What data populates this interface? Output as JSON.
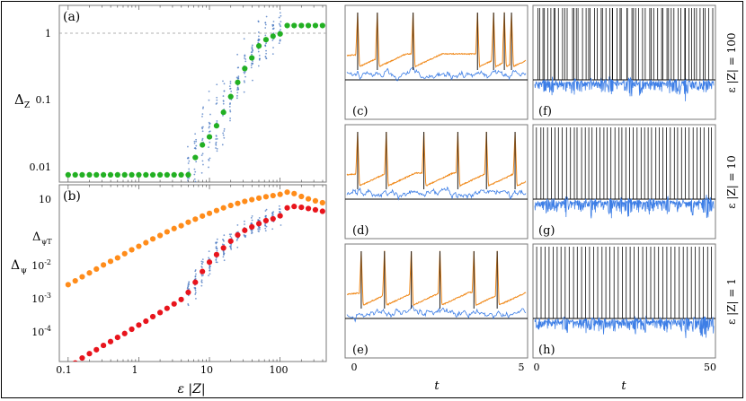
{
  "figure": {
    "panel_a": {
      "tag": "(a)",
      "ylabel_main": "Δ",
      "ylabel_sub": "Z",
      "yticks": [
        "1",
        "0.1",
        "0.01"
      ],
      "dashed_reference": 1
    },
    "panel_b": {
      "tag": "(b)",
      "ylabel_top_main": "Δ",
      "ylabel_top_sub": "ψT",
      "ylabel_bottom_main": "Δ",
      "ylabel_bottom_sub": "ψ",
      "yticks": [
        "10",
        "10-2",
        "10-3",
        "10-4"
      ]
    },
    "shared_x": {
      "label": "ε |Z|",
      "ticks": [
        "0.1",
        "1",
        "10",
        "100"
      ]
    },
    "trace_panels": {
      "tags": [
        "(c)",
        "(d)",
        "(e)",
        "(f)",
        "(g)",
        "(h)"
      ],
      "row_labels": [
        "ε |Z| = 100",
        "ε |Z| = 10",
        "ε |Z| = 1"
      ],
      "left_xticks": [
        "0",
        "5"
      ],
      "right_xticks": [
        "0",
        "50"
      ],
      "xlabel": "t"
    },
    "colors": {
      "green": "#22b022",
      "orange": "#ff8c1a",
      "red": "#e8141c",
      "scatter_blue": "#4a78c2",
      "trace_blue": "#3d7ee6",
      "trace_orange": "#f0891a"
    }
  },
  "chart_data": [
    {
      "type": "scatter",
      "panel": "a",
      "xscale": "log",
      "yscale": "log",
      "xlim": [
        0.075,
        450
      ],
      "ylim": [
        0.008,
        1.8
      ],
      "series": [
        {
          "color": "#22b022",
          "x": [
            0.1,
            0.126,
            0.158,
            0.2,
            0.251,
            0.316,
            0.398,
            0.501,
            0.631,
            0.794,
            1.0,
            1.26,
            1.58,
            2.0,
            2.51,
            3.16,
            3.98,
            5.01,
            6.31,
            7.94,
            10,
            12.6,
            15.8,
            20,
            25.1,
            31.6,
            39.8,
            50.1,
            63.1,
            79.4,
            100,
            126,
            158,
            200,
            251,
            316,
            398
          ],
          "y": [
            0.01,
            0.01,
            0.01,
            0.01,
            0.01,
            0.01,
            0.01,
            0.01,
            0.01,
            0.01,
            0.01,
            0.01,
            0.01,
            0.01,
            0.01,
            0.01,
            0.01,
            0.01,
            0.017,
            0.025,
            0.032,
            0.045,
            0.068,
            0.11,
            0.17,
            0.26,
            0.36,
            0.52,
            0.63,
            0.7,
            0.75,
            0.97,
            0.97,
            0.97,
            0.97,
            0.97,
            0.97
          ]
        }
      ]
    },
    {
      "type": "scatter",
      "panel": "b",
      "xscale": "log",
      "yscale": "log",
      "xlim": [
        0.075,
        450
      ],
      "ylim": [
        5e-05,
        25
      ],
      "series": [
        {
          "color": "#ff8c1a",
          "x": [
            0.1,
            0.126,
            0.158,
            0.2,
            0.251,
            0.316,
            0.398,
            0.501,
            0.631,
            0.794,
            1.0,
            1.26,
            1.58,
            2.0,
            2.51,
            3.16,
            3.98,
            5.01,
            6.31,
            7.94,
            10,
            12.6,
            15.8,
            20,
            25.1,
            31.6,
            39.8,
            50.1,
            63.1,
            79.4,
            100,
            126,
            158,
            200,
            251,
            316,
            398
          ],
          "y": [
            0.015,
            0.02,
            0.027,
            0.036,
            0.048,
            0.065,
            0.085,
            0.11,
            0.15,
            0.2,
            0.26,
            0.34,
            0.45,
            0.58,
            0.76,
            0.97,
            1.2,
            1.55,
            1.95,
            2.45,
            3.0,
            3.7,
            4.5,
            5.4,
            6.3,
            7.3,
            8.3,
            9.3,
            10.3,
            11.2,
            12.3,
            14.5,
            13.0,
            10.5,
            8.8,
            7.6,
            6.6
          ]
        },
        {
          "color": "#e8141c",
          "x": [
            0.1,
            0.126,
            0.158,
            0.2,
            0.251,
            0.316,
            0.398,
            0.501,
            0.631,
            0.794,
            1.0,
            1.26,
            1.58,
            2.0,
            2.51,
            3.16,
            3.98,
            5.01,
            6.31,
            7.94,
            10,
            12.6,
            15.8,
            20,
            25.1,
            31.6,
            39.8,
            50.1,
            63.1,
            79.4,
            100,
            126,
            158,
            200,
            251,
            316,
            398
          ],
          "y": [
            3e-05,
            4.5e-05,
            6.5e-05,
            9e-05,
            0.00012,
            0.000165,
            0.00022,
            0.0003,
            0.0004,
            0.00055,
            0.00075,
            0.001,
            0.0014,
            0.0019,
            0.0026,
            0.0036,
            0.005,
            0.0085,
            0.018,
            0.04,
            0.08,
            0.14,
            0.23,
            0.38,
            0.6,
            0.85,
            1.1,
            1.4,
            1.75,
            2.0,
            2.5,
            4.5,
            5.0,
            4.7,
            4.3,
            3.9,
            3.5
          ]
        }
      ]
    }
  ]
}
